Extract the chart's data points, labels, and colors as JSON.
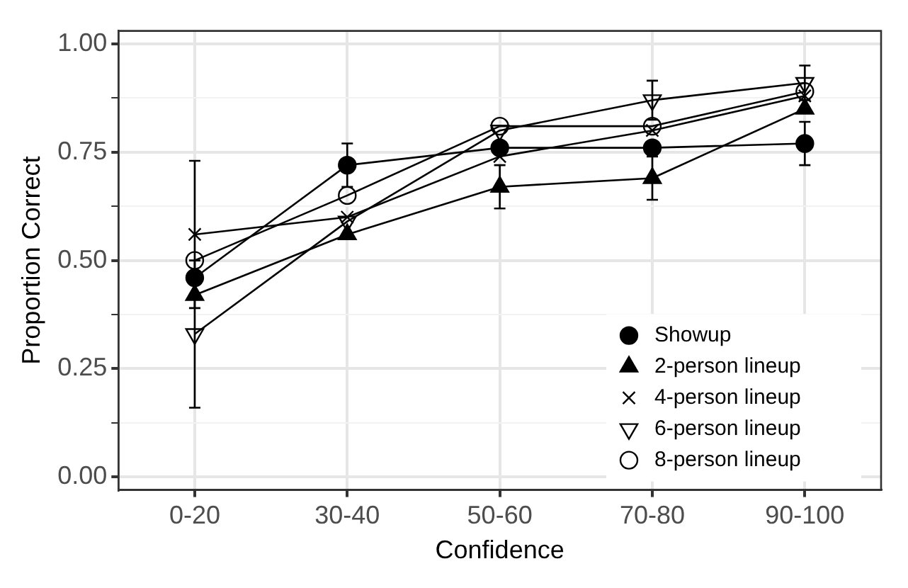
{
  "chart_data": {
    "type": "line",
    "xlabel": "Confidence",
    "ylabel": "Proportion Correct",
    "categories": [
      "0-20",
      "30-40",
      "50-60",
      "70-80",
      "90-100"
    ],
    "series": [
      {
        "name": "Showup",
        "color": "#000000",
        "marker": "circle",
        "values": [
          0.46,
          0.72,
          0.76,
          0.76,
          0.77
        ],
        "errors": [
          null,
          0.05,
          null,
          null,
          0.05
        ]
      },
      {
        "name": "2-person lineup",
        "color": "#000000",
        "marker": "triangle",
        "values": [
          0.42,
          0.56,
          0.67,
          0.69,
          0.85
        ],
        "errors": [
          null,
          null,
          0.05,
          0.05,
          null
        ]
      },
      {
        "name": "4-person lineup",
        "color": "#000000",
        "marker": "cross",
        "values": [
          0.56,
          0.6,
          0.74,
          0.8,
          0.88
        ],
        "errors": [
          0.17,
          null,
          null,
          null,
          null
        ]
      },
      {
        "name": "6-person lineup",
        "color": "#000000",
        "marker": "triangle-down",
        "values": [
          0.33,
          0.59,
          0.8,
          0.87,
          0.91
        ],
        "errors": [
          0.17,
          null,
          null,
          0.045,
          0.04
        ]
      },
      {
        "name": "8-person lineup",
        "color": "#000000",
        "marker": "circle-open",
        "values": [
          0.5,
          0.65,
          0.81,
          0.81,
          0.89
        ],
        "errors": [
          null,
          null,
          null,
          null,
          null
        ]
      }
    ],
    "ylim": [
      -0.03,
      1.03
    ],
    "yticks": [
      {
        "value": 0,
        "label": "0.00"
      },
      {
        "value": 0.125,
        "label": null
      },
      {
        "value": 0.25,
        "label": "0.25"
      },
      {
        "value": 0.375,
        "label": null
      },
      {
        "value": 0.5,
        "label": "0.50"
      },
      {
        "value": 0.625,
        "label": null
      },
      {
        "value": 0.75,
        "label": "0.75"
      },
      {
        "value": 0.875,
        "label": null
      },
      {
        "value": 1,
        "label": "1.00"
      }
    ],
    "grid": true,
    "legend": "bottom right",
    "line_style": "solid"
  }
}
